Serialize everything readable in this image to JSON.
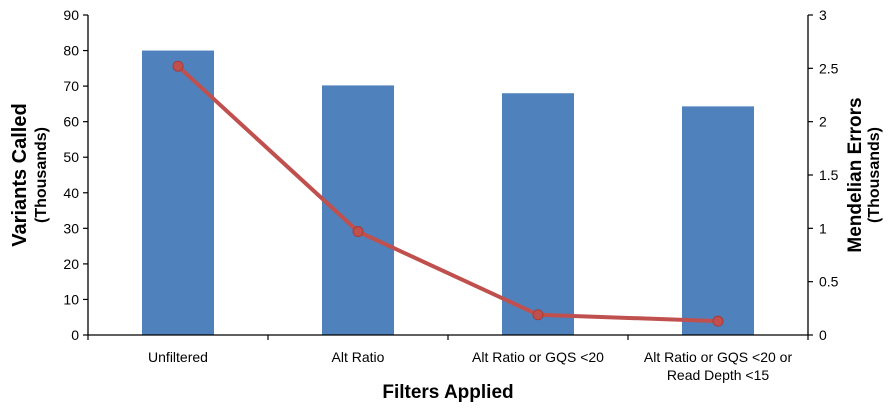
{
  "chart_data": {
    "type": "bar+line",
    "categories": [
      [
        "Unfiltered"
      ],
      [
        "Alt Ratio"
      ],
      [
        "Alt Ratio or GQS <20"
      ],
      [
        "Alt Ratio or GQS <20 or",
        "Read Depth <15"
      ]
    ],
    "series": [
      {
        "name": "",
        "type": "bar",
        "axis": "left",
        "color": "#4F81BD",
        "values": [
          80,
          70.2,
          68,
          64.3
        ]
      },
      {
        "name": "",
        "type": "line",
        "axis": "right",
        "color": "#C0504D",
        "values": [
          2.52,
          0.97,
          0.19,
          0.13
        ]
      }
    ],
    "xlabel": "Filters Applied",
    "ylabel_left": [
      "Variants Called",
      "(Thousands)"
    ],
    "ylabel_right": [
      "Mendelian Errors",
      "(Thousands)"
    ],
    "ylim_left": [
      0,
      90
    ],
    "yticks_left": [
      "0",
      "10",
      "20",
      "30",
      "40",
      "50",
      "60",
      "70",
      "80",
      "90"
    ],
    "ylim_right": [
      0,
      3
    ],
    "yticks_right": [
      "0",
      "0.5",
      "1",
      "1.5",
      "2",
      "2.5",
      "3"
    ],
    "grid": false,
    "legend": "none"
  }
}
